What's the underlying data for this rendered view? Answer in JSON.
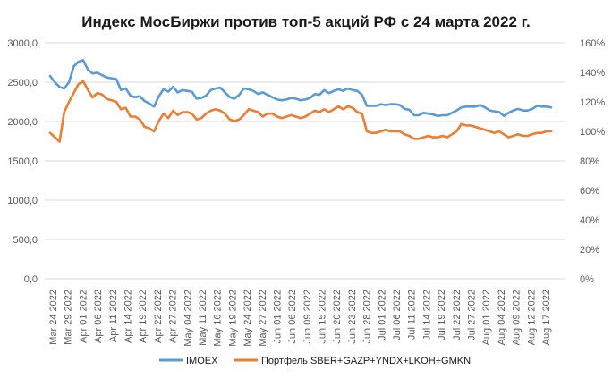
{
  "chart_data": {
    "type": "line",
    "title": "Индекс МосБиржи против топ-5 акций РФ с 24 марта 2022 г.",
    "xlabel": "",
    "ylabel": "",
    "ylim": [
      0,
      3000
    ],
    "y2lim": [
      0,
      160
    ],
    "yticks": [
      "0,0",
      "500,0",
      "1000,0",
      "1500,0",
      "2000,0",
      "2500,0",
      "3000,0"
    ],
    "y2ticks": [
      "0%",
      "20%",
      "40%",
      "60%",
      "80%",
      "100%",
      "120%",
      "140%",
      "160%"
    ],
    "grid": true,
    "legend": "bottom",
    "x_labels": [
      "Mar 24 2022",
      "Mar 29 2022",
      "Apr 01 2022",
      "Apr 06 2022",
      "Apr 11 2022",
      "Apr 14 2022",
      "Apr 19 2022",
      "Apr 22 2022",
      "Apr 27 2022",
      "May 04 2022",
      "May 11 2022",
      "May 16 2022",
      "May 19 2022",
      "May 24 2022",
      "May 27 2022",
      "Jun 01 2022",
      "Jun 06 2022",
      "Jun 09 2022",
      "Jun 15 2022",
      "Jun 20 2022",
      "Jun 23 2022",
      "Jun 28 2022",
      "Jul 01 2022",
      "Jul 06 2022",
      "Jul 11 2022",
      "Jul 14 2022",
      "Jul 19 2022",
      "Jul 22 2022",
      "Jul 27 2022",
      "Aug 01 2022",
      "Aug 04 2022",
      "Aug 09 2022",
      "Aug 12 2022",
      "Aug 17 2022"
    ],
    "series": [
      {
        "name": "IMOEX",
        "axis": "left",
        "color": "#5b9bd5",
        "values": [
          2580,
          2500,
          2440,
          2420,
          2500,
          2700,
          2760,
          2780,
          2660,
          2610,
          2620,
          2590,
          2560,
          2550,
          2540,
          2400,
          2420,
          2330,
          2310,
          2320,
          2260,
          2230,
          2190,
          2320,
          2410,
          2380,
          2440,
          2370,
          2400,
          2390,
          2380,
          2290,
          2300,
          2330,
          2400,
          2420,
          2430,
          2370,
          2310,
          2290,
          2340,
          2420,
          2410,
          2390,
          2350,
          2370,
          2340,
          2310,
          2280,
          2270,
          2280,
          2300,
          2290,
          2270,
          2280,
          2300,
          2350,
          2340,
          2400,
          2360,
          2390,
          2410,
          2390,
          2420,
          2400,
          2390,
          2340,
          2200,
          2200,
          2200,
          2220,
          2210,
          2220,
          2220,
          2210,
          2160,
          2150,
          2080,
          2080,
          2110,
          2100,
          2090,
          2070,
          2080,
          2080,
          2110,
          2140,
          2180,
          2190,
          2190,
          2190,
          2210,
          2180,
          2140,
          2130,
          2120,
          2070,
          2110,
          2140,
          2160,
          2140,
          2140,
          2160,
          2200,
          2190,
          2190,
          2180
        ]
      },
      {
        "name": "Портфель SBER+GAZP+YNDX+LKOH+GMKN",
        "axis": "right",
        "color": "#ed7d31",
        "values": [
          99,
          96,
          93,
          113,
          120,
          126,
          132,
          134,
          128,
          123,
          126,
          125,
          122,
          121,
          120,
          115,
          116,
          110,
          110,
          108,
          103,
          102,
          100,
          107,
          112,
          109,
          114,
          111,
          113,
          113,
          112,
          108,
          109,
          112,
          114,
          115,
          114,
          112,
          108,
          107,
          108,
          111,
          115,
          114,
          113,
          110,
          112,
          112,
          110,
          109,
          110,
          111,
          110,
          109,
          110,
          112,
          114,
          113,
          115,
          113,
          115,
          117,
          115,
          117,
          116,
          113,
          112,
          100,
          99,
          99,
          100,
          101,
          100,
          100,
          100,
          98,
          97,
          95,
          95,
          96,
          97,
          96,
          96,
          97,
          96,
          98,
          100,
          105,
          104,
          104,
          103,
          102,
          101,
          100,
          99,
          100,
          98,
          96,
          97,
          98,
          97,
          97,
          98,
          99,
          99,
          100,
          100
        ]
      }
    ]
  }
}
